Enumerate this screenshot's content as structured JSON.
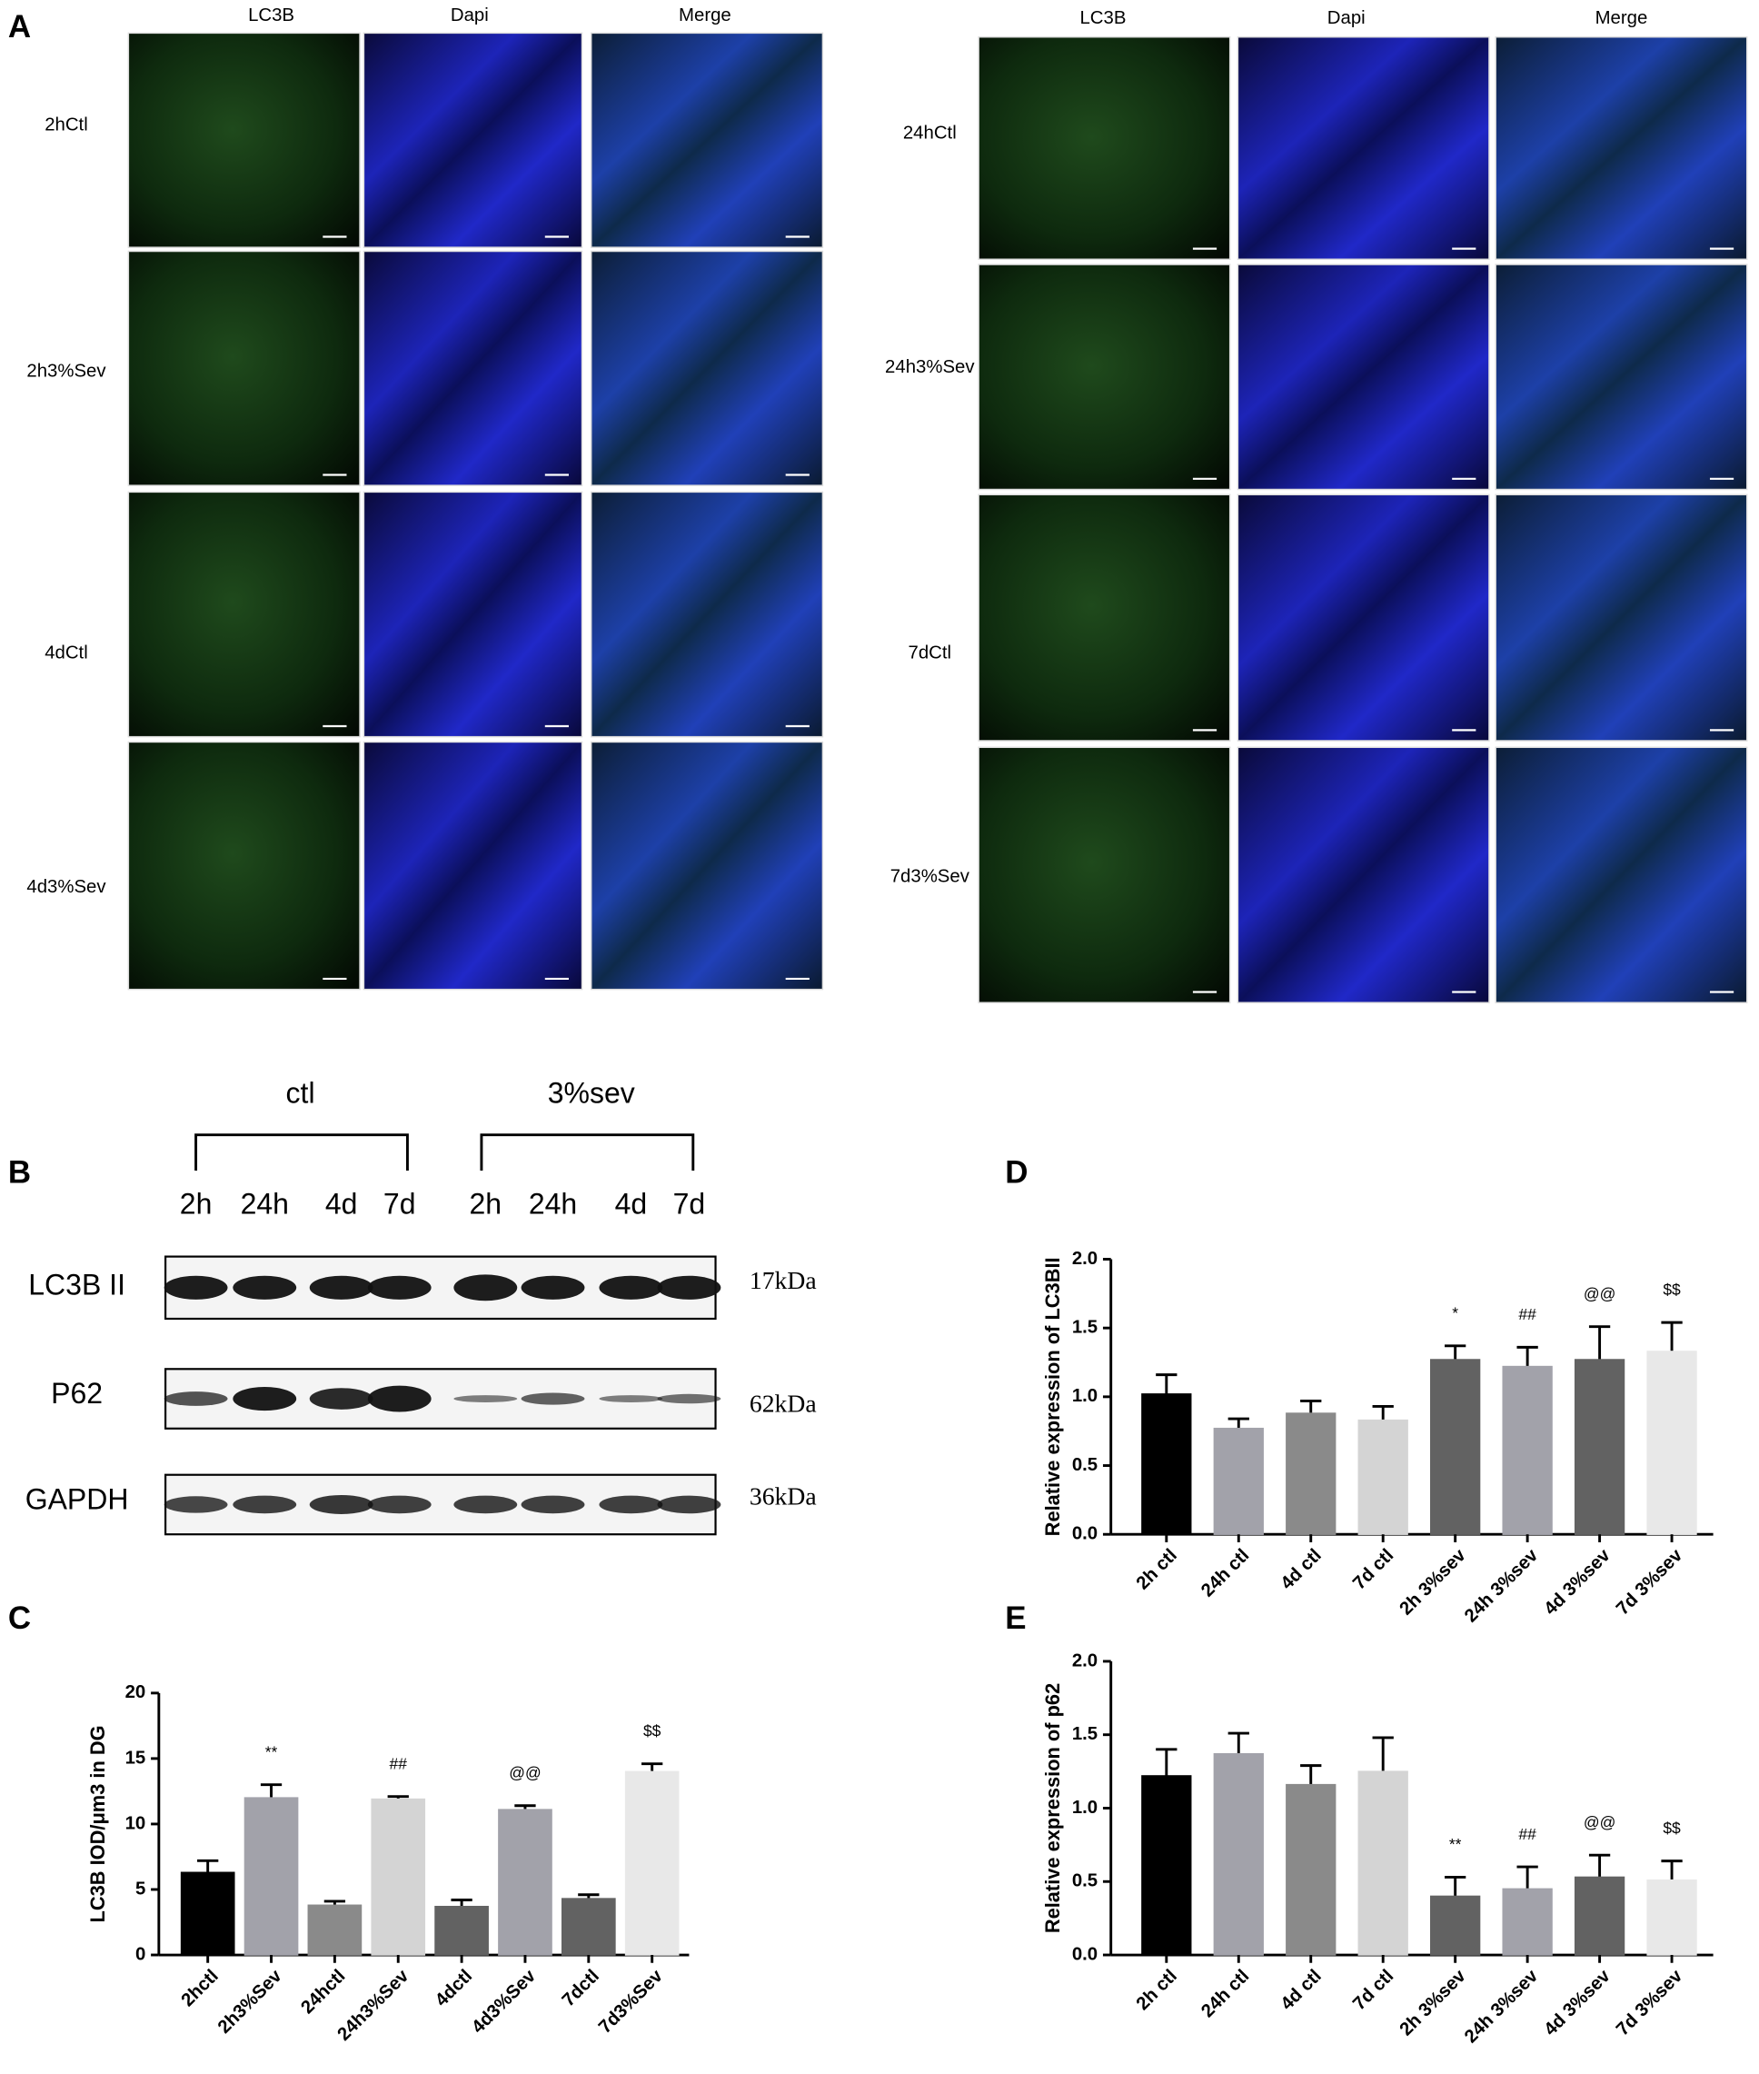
{
  "panel_a": {
    "label": "A",
    "left": {
      "headers": [
        "LC3B",
        "Dapi",
        "Merge"
      ],
      "rows": [
        "2hCtl",
        "2h3%Sev",
        "4dCtl",
        "4d3%Sev"
      ]
    },
    "right": {
      "headers": [
        "LC3B",
        "Dapi",
        "Merge"
      ],
      "rows": [
        "24hCtl",
        "24h3%Sev",
        "7dCtl",
        "7d3%Sev"
      ]
    }
  },
  "panel_b": {
    "label": "B",
    "groups": [
      "ctl",
      "3%sev"
    ],
    "lanes": [
      "2h",
      "24h",
      "4d",
      "7d",
      "2h",
      "24h",
      "4d",
      "7d"
    ],
    "blots": [
      {
        "name": "LC3B II",
        "size": "17kDa"
      },
      {
        "name": "P62",
        "size": "62kDa"
      },
      {
        "name": "GAPDH",
        "size": "36kDa"
      }
    ]
  },
  "chart_data": [
    {
      "type": "bar",
      "panel": "C",
      "y_label": "LC3B IOD/μm3 in DG",
      "categories": [
        "2hctl",
        "2h3%Sev",
        "24hctl",
        "24h3%Sev",
        "4dctl",
        "4d3%Sev",
        "7dctl",
        "7d3%Sev"
      ],
      "values": [
        6.3,
        12.0,
        3.8,
        11.9,
        3.7,
        11.1,
        4.3,
        14.0
      ],
      "errors": [
        0.9,
        1.0,
        0.3,
        0.2,
        0.5,
        0.3,
        0.3,
        0.6
      ],
      "annotations": [
        null,
        "**",
        null,
        "##",
        null,
        "@@",
        null,
        "$$"
      ],
      "colors": [
        "#000000",
        "#a2a2aa",
        "#8a8a8a",
        "#d4d4d4",
        "#626262",
        "#a2a2aa",
        "#626262",
        "#e8e8e8"
      ],
      "ylim": [
        0,
        20
      ],
      "yticks": [
        0,
        5,
        10,
        15,
        20
      ]
    },
    {
      "type": "bar",
      "panel": "D",
      "y_label": "Relative expression of LC3BII",
      "categories": [
        "2h ctl",
        "24h ctl",
        "4d ctl",
        "7d ctl",
        "2h 3%sev",
        "24h 3%sev",
        "4d 3%sev",
        "7d 3%sev"
      ],
      "values": [
        1.02,
        0.77,
        0.88,
        0.83,
        1.27,
        1.22,
        1.27,
        1.33
      ],
      "errors": [
        0.14,
        0.07,
        0.09,
        0.1,
        0.1,
        0.14,
        0.24,
        0.21
      ],
      "annotations": [
        null,
        null,
        null,
        null,
        "*",
        "##",
        "@@",
        "$$"
      ],
      "colors": [
        "#000000",
        "#a2a2aa",
        "#8a8a8a",
        "#d4d4d4",
        "#626262",
        "#a2a2aa",
        "#626262",
        "#e8e8e8"
      ],
      "ylim": [
        0,
        2
      ],
      "yticks": [
        {
          "value": 0,
          "label": "0.0"
        },
        {
          "value": 0.5,
          "label": "0.5"
        },
        {
          "value": 1,
          "label": "1.0"
        },
        {
          "value": 1.5,
          "label": "1.5"
        },
        {
          "value": 2,
          "label": "2.0"
        }
      ]
    },
    {
      "type": "bar",
      "panel": "E",
      "y_label": "Relative expression of p62",
      "categories": [
        "2h ctl",
        "24h ctl",
        "4d ctl",
        "7d ctl",
        "2h 3%sev",
        "24h 3%sev",
        "4d 3%sev",
        "7d 3%sev"
      ],
      "values": [
        1.22,
        1.37,
        1.16,
        1.25,
        0.4,
        0.45,
        0.53,
        0.51
      ],
      "errors": [
        0.18,
        0.14,
        0.13,
        0.23,
        0.13,
        0.15,
        0.15,
        0.13
      ],
      "annotations": [
        null,
        null,
        null,
        null,
        "**",
        "##",
        "@@",
        "$$"
      ],
      "colors": [
        "#000000",
        "#a2a2aa",
        "#8a8a8a",
        "#d4d4d4",
        "#626262",
        "#a2a2aa",
        "#626262",
        "#e8e8e8"
      ],
      "ylim": [
        0,
        2
      ],
      "yticks": [
        {
          "value": 0,
          "label": "0.0"
        },
        {
          "value": 0.5,
          "label": "0.5"
        },
        {
          "value": 1,
          "label": "1.0"
        },
        {
          "value": 1.5,
          "label": "1.5"
        },
        {
          "value": 2,
          "label": "2.0"
        }
      ]
    }
  ]
}
